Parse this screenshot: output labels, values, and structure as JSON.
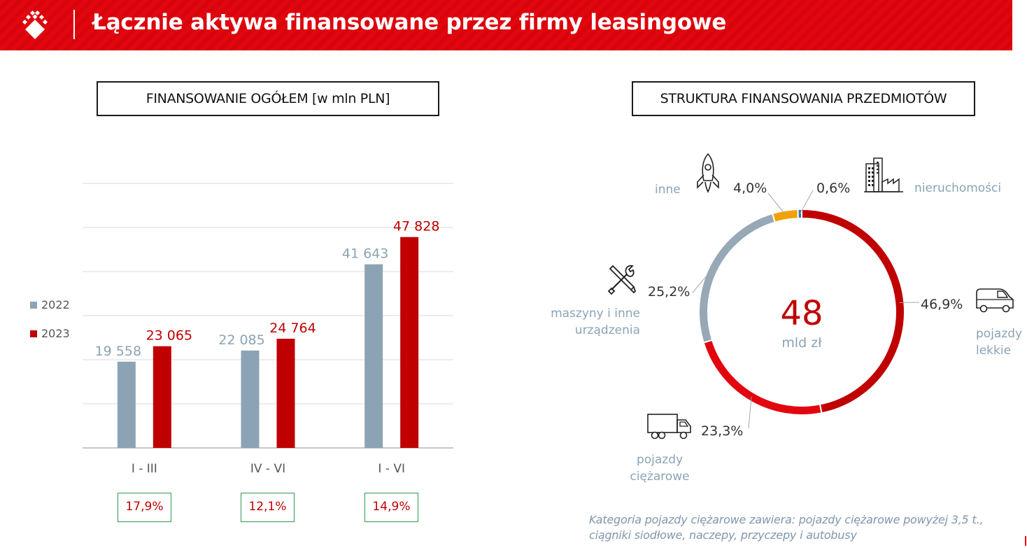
{
  "header": {
    "title": "Łącznie aktywa finansowane przez firmy leasingowe",
    "logo_icon": "brand-diamond-icon",
    "background_color": "#e2060f"
  },
  "left_panel": {
    "title": "FINANSOWANIE OGÓŁEM [w mln PLN]",
    "growth_rates": [
      "17,9%",
      "12,1%",
      "14,9%"
    ]
  },
  "right_panel": {
    "title": "STRUKTURA FINANSOWANIA PRZEDMIOTÓW",
    "center_value": "48",
    "center_unit": "mld zł",
    "labels": {
      "inne": "inne",
      "nieruchomosci": "nieruchomości",
      "maszyny_line1": "maszyny i inne",
      "maszyny_line2": "urządzenia",
      "lekkie_line1": "pojazdy",
      "lekkie_line2": "lekkie",
      "ciezarowe_line1": "pojazdy",
      "ciezarowe_line2": "ciężarowe"
    },
    "percents": {
      "lekkie": "46,9%",
      "ciezarowe": "23,3%",
      "maszyny": "25,2%",
      "inne": "4,0%",
      "nieruchomosci": "0,6%"
    },
    "icons": [
      "rocket-icon",
      "building-icon",
      "tools-icon",
      "van-icon",
      "truck-icon"
    ],
    "footnote_line1": "Kategoria pojazdy ciężarowe zawiera: pojazdy ciężarowe powyżej 3,5 t.,",
    "footnote_line2": "ciągniki siodłowe, naczepy, przyczepy i autobusy"
  },
  "chart_data": [
    {
      "type": "bar",
      "categories": [
        "I - III",
        "IV - VI",
        "I - VI"
      ],
      "series": [
        {
          "name": "2022",
          "values": [
            19558,
            22085,
            41643
          ],
          "labels": [
            "19 558",
            "22 085",
            "41 643"
          ],
          "color": "#8ca3b5",
          "label_color": "#8ca3b5"
        },
        {
          "name": "2023",
          "values": [
            23065,
            24764,
            47828
          ],
          "labels": [
            "23 065",
            "24 764",
            "47 828"
          ],
          "color": "#c00000",
          "label_color": "#c00000"
        }
      ],
      "ylim": [
        0,
        60000
      ],
      "grid": true,
      "legend": "left"
    },
    {
      "type": "pie",
      "style": "donut",
      "categories": [
        "pojazdy lekkie",
        "pojazdy ciężarowe",
        "maszyny i inne urządzenia",
        "inne",
        "nieruchomości"
      ],
      "values": [
        46.9,
        23.3,
        25.2,
        4.0,
        0.6
      ],
      "colors": [
        "#c00000",
        "#e2060f",
        "#97a8b6",
        "#f2a100",
        "#2e6fb5"
      ]
    }
  ]
}
